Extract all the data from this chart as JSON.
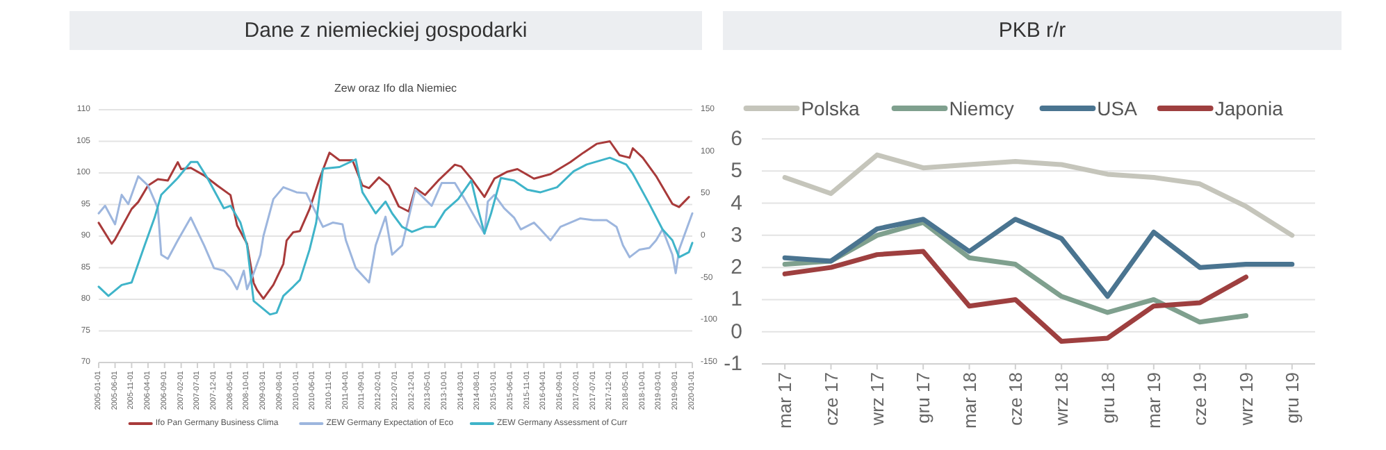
{
  "chart_data": [
    {
      "type": "line",
      "title": "Dane z niemieckiej gospodarki",
      "subtitle": "Zew oraz Ifo dla Niemiec",
      "xlim": [
        "2005-01-01",
        "2020-01-01"
      ],
      "xticks": [
        "2005-01-01",
        "2005-06-01",
        "2005-11-01",
        "2006-04-01",
        "2006-09-01",
        "2007-02-01",
        "2007-07-01",
        "2007-12-01",
        "2008-05-01",
        "2008-10-01",
        "2009-03-01",
        "2009-08-01",
        "2010-01-01",
        "2010-06-01",
        "2010-11-01",
        "2011-04-01",
        "2011-09-01",
        "2012-02-01",
        "2012-07-01",
        "2012-12-01",
        "2013-05-01",
        "2013-10-01",
        "2014-03-01",
        "2014-08-01",
        "2015-01-01",
        "2015-06-01",
        "2015-11-01",
        "2016-04-01",
        "2016-09-01",
        "2017-02-01",
        "2017-07-01",
        "2017-12-01",
        "2018-05-01",
        "2018-10-01",
        "2019-03-01",
        "2019-08-01",
        "2020-01-01"
      ],
      "ylim": [
        70,
        110
      ],
      "yticks": [
        70,
        75,
        80,
        85,
        90,
        95,
        100,
        105,
        110
      ],
      "y2lim": [
        -150,
        150
      ],
      "y2ticks": [
        -150,
        -100,
        -50,
        0,
        50,
        100,
        150
      ],
      "grid": "y",
      "legend": "bottom",
      "line_style": "solid",
      "series": [
        {
          "name": "Ifo Pan Germany Business Clima",
          "color": "#a83a3a",
          "x": [
            "2005-01",
            "2005-05",
            "2005-06",
            "2005-11",
            "2006-01",
            "2006-04",
            "2006-07",
            "2006-10",
            "2007-01",
            "2007-02",
            "2007-05",
            "2007-09",
            "2008-01",
            "2008-05",
            "2008-07",
            "2008-10",
            "2008-12",
            "2009-01",
            "2009-03",
            "2009-06",
            "2009-09",
            "2009-10",
            "2009-12",
            "2010-02",
            "2010-05",
            "2010-08",
            "2010-11",
            "2011-02",
            "2011-06",
            "2011-09",
            "2011-11",
            "2012-02",
            "2012-05",
            "2012-08",
            "2012-11",
            "2013-01",
            "2013-04",
            "2013-08",
            "2014-01",
            "2014-03",
            "2014-06",
            "2014-10",
            "2015-01",
            "2015-05",
            "2015-08",
            "2016-01",
            "2016-06",
            "2016-12",
            "2017-04",
            "2017-08",
            "2017-12",
            "2018-03",
            "2018-06",
            "2018-07",
            "2018-10",
            "2019-02",
            "2019-07",
            "2019-09",
            "2019-12"
          ],
          "values": [
            92.1,
            88.8,
            89.5,
            94.3,
            95.4,
            98,
            99,
            98.8,
            101.7,
            100.6,
            100.8,
            99.6,
            98,
            96.5,
            91.7,
            88.8,
            82.6,
            81.5,
            80.1,
            82.3,
            85.6,
            89.3,
            90.6,
            90.8,
            94.3,
            99.1,
            103.2,
            102,
            102,
            98,
            97.6,
            99.3,
            98,
            94.7,
            93.9,
            97.6,
            96.5,
            98.8,
            101.3,
            101,
            99.1,
            96.2,
            99.1,
            100.2,
            100.6,
            99.1,
            99.8,
            101.7,
            103.2,
            104.6,
            105,
            102.8,
            102.4,
            103.9,
            102.4,
            99.5,
            95.1,
            94.6,
            96.2
          ]
        },
        {
          "name": "ZEW Germany Expectation of Eco",
          "color": "#9db6de",
          "axis": "y2",
          "x": [
            "2005-01",
            "2005-03",
            "2005-06",
            "2005-08",
            "2005-10",
            "2006-01",
            "2006-04",
            "2006-07",
            "2006-08",
            "2006-10",
            "2007-01",
            "2007-05",
            "2007-09",
            "2007-12",
            "2008-03",
            "2008-05",
            "2008-07",
            "2008-09",
            "2008-10",
            "2008-12",
            "2009-02",
            "2009-03",
            "2009-06",
            "2009-09",
            "2010-01",
            "2010-04",
            "2010-07",
            "2010-09",
            "2010-12",
            "2011-03",
            "2011-04",
            "2011-07",
            "2011-11",
            "2012-01",
            "2012-04",
            "2012-06",
            "2012-09",
            "2013-01",
            "2013-06",
            "2013-09",
            "2014-01",
            "2014-04",
            "2014-08",
            "2014-10",
            "2014-11",
            "2015-01",
            "2015-04",
            "2015-07",
            "2015-09",
            "2016-01",
            "2016-03",
            "2016-06",
            "2016-09",
            "2016-12",
            "2017-03",
            "2017-07",
            "2017-11",
            "2018-02",
            "2018-04",
            "2018-06",
            "2018-09",
            "2018-12",
            "2019-02",
            "2019-04",
            "2019-07",
            "2019-08",
            "2019-09",
            "2020-01"
          ],
          "values": [
            27,
            36,
            14,
            49,
            38,
            71,
            60,
            33,
            -22,
            -27,
            -5,
            22,
            -11,
            -38,
            -41,
            -49,
            -63,
            -41,
            -63,
            -44,
            -22,
            0,
            44,
            58,
            52,
            51,
            27,
            11,
            16,
            14,
            -5,
            -38,
            -55,
            -11,
            23,
            -22,
            -11,
            55,
            36,
            63,
            63,
            44,
            16,
            3,
            41,
            49,
            33,
            22,
            8,
            16,
            8,
            -5,
            11,
            16,
            21,
            19,
            19,
            11,
            -11,
            -25,
            -16,
            -14,
            -5,
            8,
            -22,
            -44,
            -16,
            27
          ]
        },
        {
          "name": "ZEW Germany Assessment of Curr",
          "color": "#3fb4c9",
          "axis": "y2",
          "x": [
            "2005-01",
            "2005-04",
            "2005-08",
            "2005-11",
            "2006-03",
            "2006-06",
            "2006-08",
            "2007-01",
            "2007-05",
            "2007-07",
            "2007-10",
            "2008-03",
            "2008-05",
            "2008-08",
            "2008-10",
            "2008-12",
            "2009-05",
            "2009-07",
            "2009-09",
            "2009-12",
            "2010-02",
            "2010-05",
            "2010-07",
            "2010-09",
            "2011-02",
            "2011-07",
            "2011-09",
            "2012-01",
            "2012-04",
            "2012-06",
            "2012-09",
            "2012-12",
            "2013-04",
            "2013-07",
            "2013-10",
            "2014-02",
            "2014-06",
            "2014-08",
            "2014-10",
            "2014-12",
            "2015-03",
            "2015-07",
            "2015-11",
            "2016-03",
            "2016-08",
            "2017-01",
            "2017-05",
            "2017-12",
            "2018-05",
            "2018-07",
            "2018-12",
            "2019-04",
            "2019-07",
            "2019-09",
            "2019-12",
            "2020-01"
          ],
          "values": [
            -60,
            -71,
            -58,
            -55,
            -11,
            22,
            49,
            69,
            88,
            88,
            69,
            33,
            36,
            16,
            -11,
            -77,
            -93,
            -91,
            -71,
            -60,
            -52,
            -16,
            16,
            80,
            82,
            91,
            52,
            27,
            41,
            27,
            11,
            5,
            11,
            11,
            30,
            44,
            66,
            33,
            3,
            27,
            69,
            66,
            55,
            52,
            58,
            77,
            85,
            93,
            85,
            74,
            38,
            8,
            -5,
            -25,
            -19,
            -8
          ]
        }
      ]
    },
    {
      "type": "line",
      "title": "PKB r/r",
      "categories": [
        "mar 17",
        "cze 17",
        "wrz 17",
        "gru 17",
        "mar 18",
        "cze 18",
        "wrz 18",
        "gru 18",
        "mar 19",
        "cze 19",
        "wrz 19",
        "gru 19"
      ],
      "ylim": [
        -1,
        6
      ],
      "yticks": [
        -1,
        0,
        1,
        2,
        3,
        4,
        5,
        6
      ],
      "grid": "y",
      "legend": "top",
      "line_style": "solid",
      "series": [
        {
          "name": "Polska",
          "color": "#c5c5bb",
          "values": [
            4.8,
            4.3,
            5.5,
            5.1,
            5.2,
            5.3,
            5.2,
            4.9,
            4.8,
            4.6,
            3.9,
            3.0
          ]
        },
        {
          "name": "Niemcy",
          "color": "#7fa08e",
          "values": [
            2.1,
            2.2,
            3.0,
            3.4,
            2.3,
            2.1,
            1.1,
            0.6,
            1.0,
            0.3,
            0.5,
            null
          ]
        },
        {
          "name": "USA",
          "color": "#4a7490",
          "values": [
            2.3,
            2.2,
            3.2,
            3.5,
            2.5,
            3.5,
            2.9,
            1.1,
            3.1,
            2.0,
            2.1,
            2.1
          ]
        },
        {
          "name": "Japonia",
          "color": "#9e3f3f",
          "values": [
            1.8,
            2.0,
            2.4,
            2.5,
            0.8,
            1.0,
            -0.3,
            -0.2,
            0.8,
            0.9,
            1.7,
            null
          ]
        }
      ]
    }
  ]
}
